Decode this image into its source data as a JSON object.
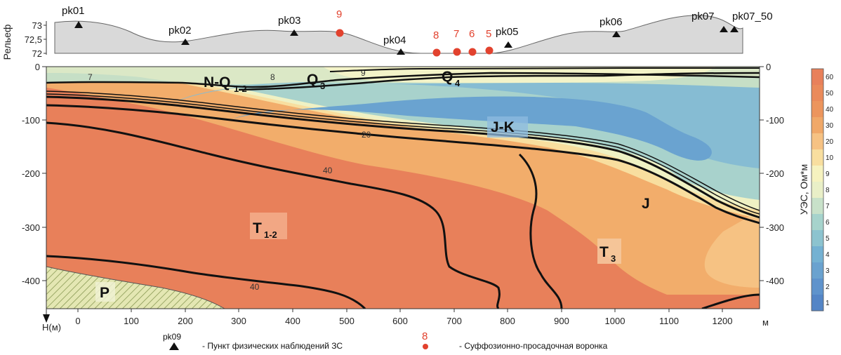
{
  "relief": {
    "title": "Рельеф",
    "ticks": [
      "73",
      "72,5",
      "72"
    ],
    "stations": [
      "pk01",
      "pk02",
      "pk03",
      "pk04",
      "pk05",
      "pk06",
      "pk07",
      "pk07_50"
    ],
    "funnels": [
      "9",
      "8",
      "7",
      "6",
      "5"
    ]
  },
  "section": {
    "y_ticks_left": [
      "0",
      "-100",
      "-200",
      "-300",
      "-400"
    ],
    "y_ticks_right": [
      "0",
      "-100",
      "-200",
      "-300",
      "-400"
    ],
    "y_axis_label": "Н(м)",
    "x_ticks": [
      "0",
      "100",
      "200",
      "300",
      "400",
      "500",
      "600",
      "700",
      "800",
      "900",
      "1000",
      "1100",
      "1200"
    ],
    "x_unit": "м",
    "units": [
      {
        "main": "N-Q",
        "sub": "1-2"
      },
      {
        "main": "Q",
        "sub": "3"
      },
      {
        "main": "Q",
        "sub": "4"
      },
      {
        "main": "J-K",
        "sub": ""
      },
      {
        "main": "J",
        "sub": ""
      },
      {
        "main": "T",
        "sub": "1-2"
      },
      {
        "main": "T",
        "sub": "3"
      },
      {
        "main": "P",
        "sub": ""
      }
    ],
    "isolines": [
      "7",
      "8",
      "9",
      "20",
      "40",
      "40"
    ]
  },
  "colorbar": {
    "title": "УЭС, Ом*м",
    "levels": [
      "60",
      "50",
      "40",
      "30",
      "20",
      "10",
      "9",
      "8",
      "7",
      "6",
      "5",
      "4",
      "3",
      "2",
      "1"
    ],
    "colors": [
      "#e8805a",
      "#ea8a5a",
      "#ec955d",
      "#f0a868",
      "#f6c283",
      "#f8de9f",
      "#f6f2bf",
      "#e9efc7",
      "#c8e1c9",
      "#a6d3cc",
      "#8cc3cf",
      "#74b1d2",
      "#6aa2cf",
      "#5f93cc",
      "#5485c6"
    ]
  },
  "legend": {
    "station_example": "pk09",
    "station_text": "- Пункт физических наблюдений ЗС",
    "funnel_example": "8",
    "funnel_text": "- Суффозионно-просадочная воронка"
  }
}
